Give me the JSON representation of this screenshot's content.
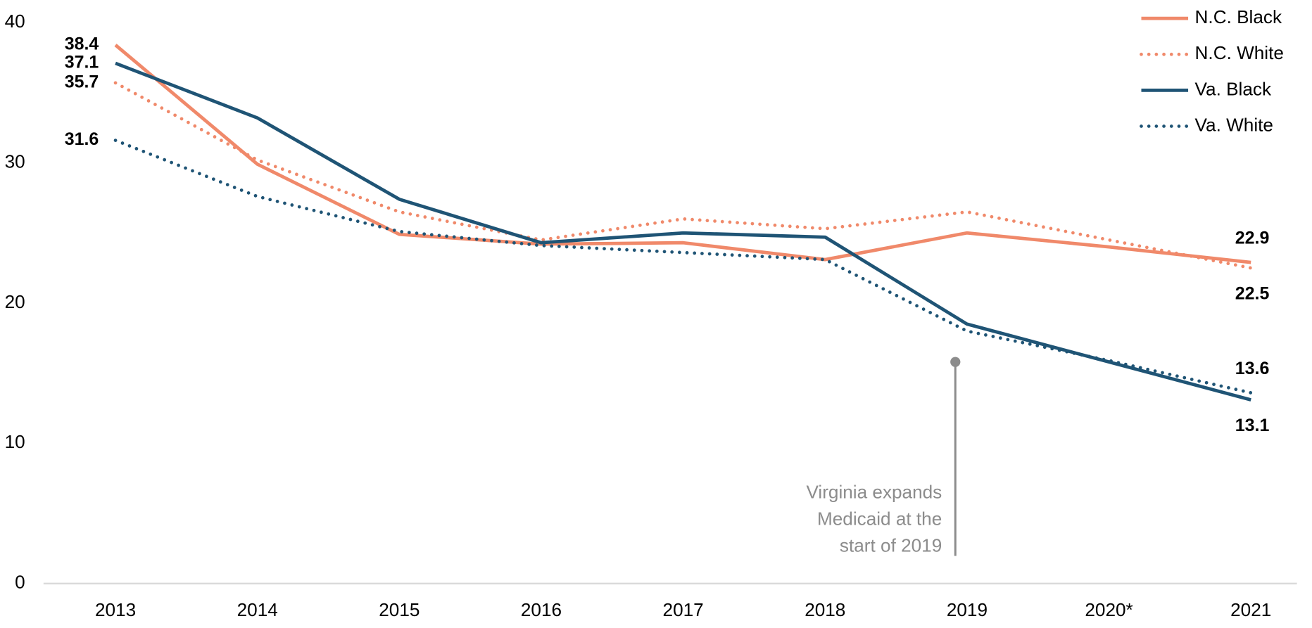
{
  "chart_data": {
    "type": "line",
    "categories": [
      "2013",
      "2014",
      "2015",
      "2016",
      "2017",
      "2018",
      "2019",
      "2020*",
      "2021"
    ],
    "series": [
      {
        "name": "N.C. Black",
        "color": "#f0896a",
        "style": "solid",
        "values": [
          38.4,
          29.9,
          24.9,
          24.2,
          24.3,
          23.1,
          25.0,
          24.0,
          22.9
        ],
        "value_labels": [
          "38.4",
          null,
          null,
          null,
          null,
          null,
          null,
          null,
          "22.9"
        ]
      },
      {
        "name": "N.C. White",
        "color": "#f0896a",
        "style": "dotted",
        "values": [
          35.7,
          30.2,
          26.5,
          24.5,
          26.0,
          25.3,
          26.5,
          24.5,
          22.5
        ],
        "value_labels": [
          "35.7",
          null,
          null,
          null,
          null,
          null,
          null,
          null,
          "22.5"
        ]
      },
      {
        "name": "Va. Black",
        "color": "#1f5475",
        "style": "solid",
        "values": [
          37.1,
          33.2,
          27.4,
          24.3,
          25.0,
          24.7,
          18.5,
          15.8,
          13.1
        ],
        "value_labels": [
          "37.1",
          null,
          null,
          null,
          null,
          null,
          null,
          null,
          "13.1"
        ]
      },
      {
        "name": "Va. White",
        "color": "#1f5475",
        "style": "dotted",
        "values": [
          31.6,
          27.6,
          25.1,
          24.1,
          23.6,
          23.1,
          18.0,
          15.9,
          13.6
        ],
        "value_labels": [
          "31.6",
          null,
          null,
          null,
          null,
          null,
          null,
          null,
          "13.6"
        ]
      }
    ],
    "ylim": [
      0,
      40
    ],
    "yticks": [
      0,
      10,
      20,
      30,
      40
    ],
    "legend": "upper right",
    "annotation": {
      "lines": [
        "Virginia expands",
        "Medicaid at the",
        "start of 2019"
      ],
      "category": "2019",
      "value": 15.8
    }
  }
}
